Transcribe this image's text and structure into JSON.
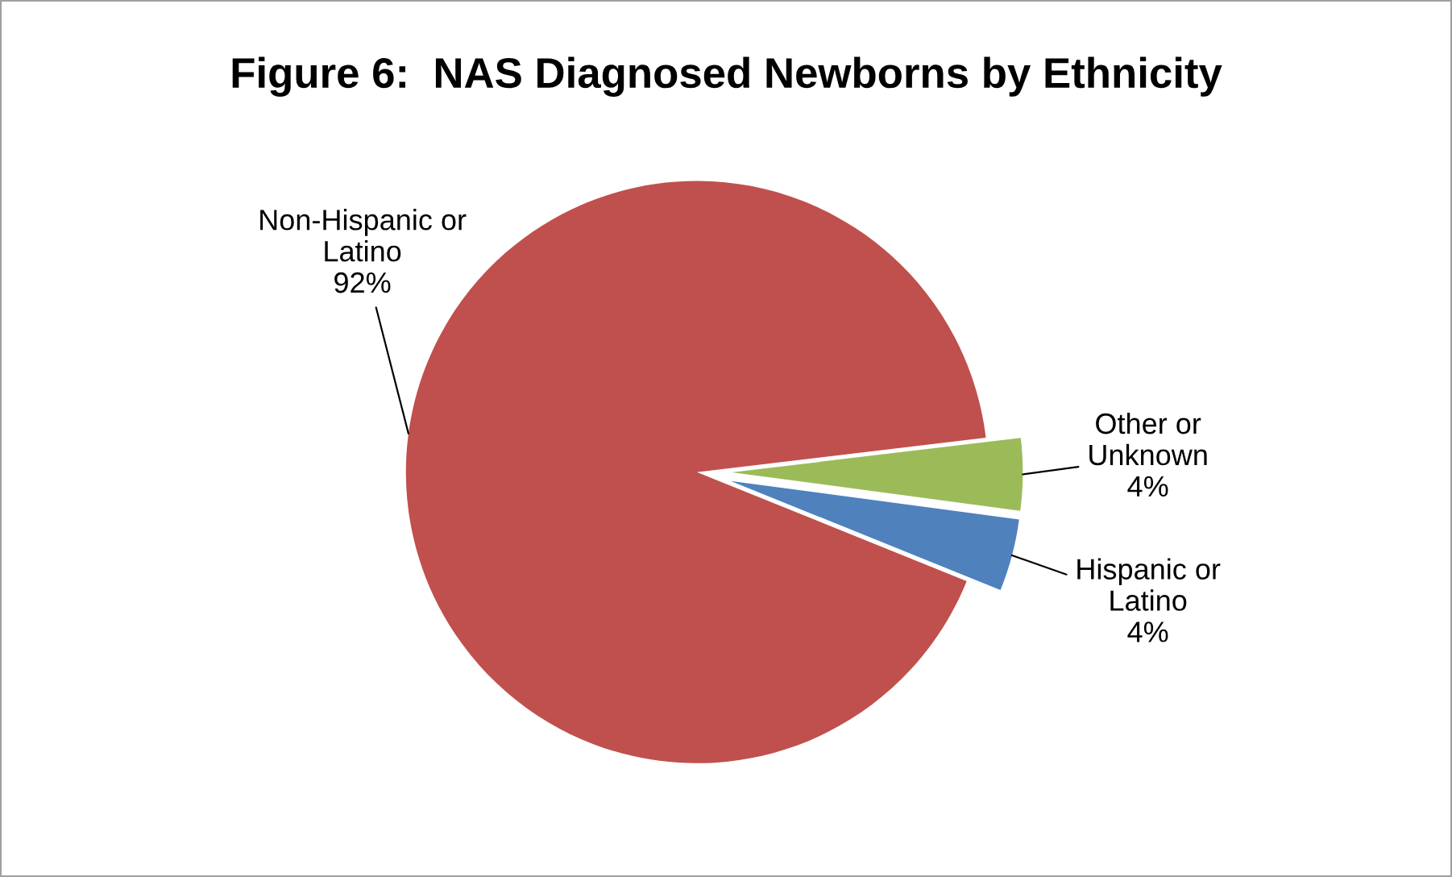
{
  "chart_data": {
    "type": "pie",
    "title": "Figure 6:  NAS Diagnosed Newborns by Ethnicity",
    "categories": [
      "Hispanic or\nLatino",
      "Other or\nUnknown",
      "Non-Hispanic or\nLatino"
    ],
    "values": [
      4,
      4,
      92
    ],
    "colors": [
      "#4f81bd",
      "#9bbb59",
      "#c0504d"
    ],
    "value_labels": [
      "4%",
      "4%",
      "92%"
    ]
  }
}
